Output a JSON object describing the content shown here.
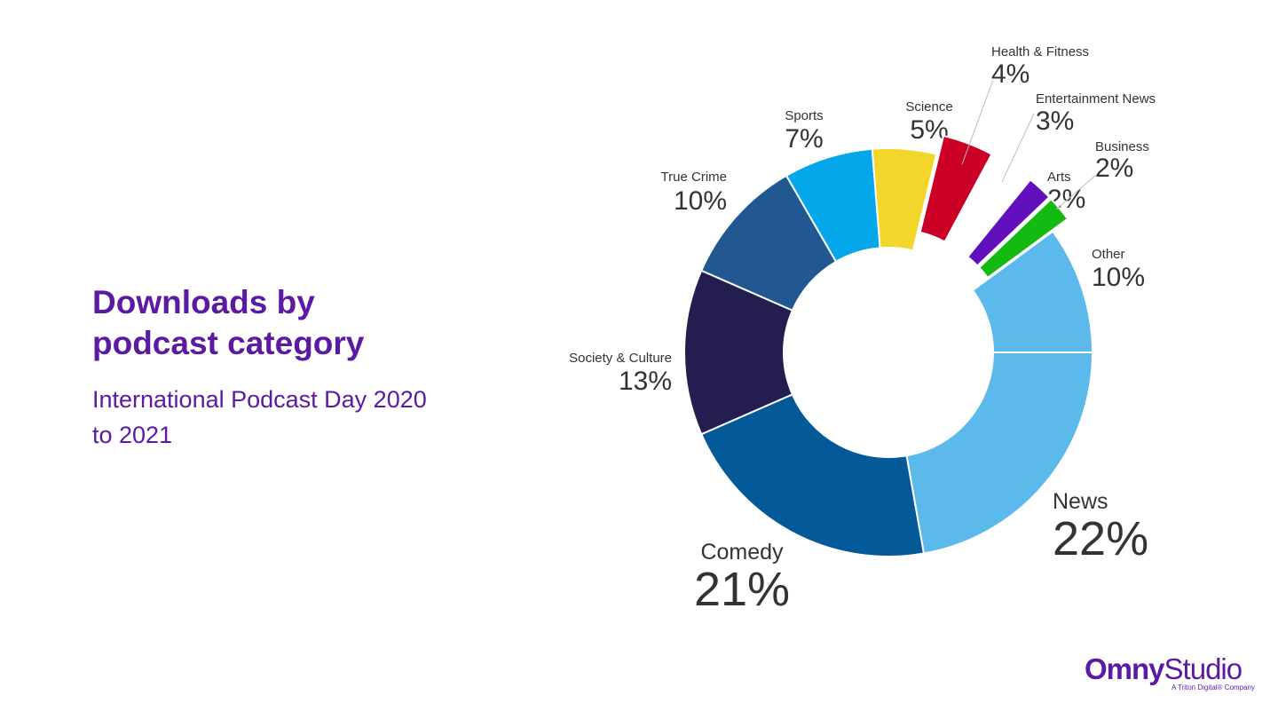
{
  "page": {
    "title": "Downloads by\npodcast category",
    "subtitle": "International Podcast Day 2020\nto 2021"
  },
  "logo": {
    "brand_bold": "Omny",
    "brand_light": "Studio",
    "tagline": "A Triton Digital® Company"
  },
  "chart_data": {
    "type": "pie",
    "style": "donut",
    "categories": [
      "News",
      "Comedy",
      "Society & Culture",
      "True Crime",
      "Sports",
      "Science",
      "Health & Fitness",
      "Entertainment News",
      "Arts",
      "Business",
      "Other"
    ],
    "values": [
      22,
      21,
      13,
      10,
      7,
      5,
      4,
      3,
      2,
      2,
      10
    ],
    "value_labels": [
      "22%",
      "21%",
      "13%",
      "10%",
      "7%",
      "5%",
      "4%",
      "3%",
      "2%",
      "2%",
      "10%"
    ],
    "colors": [
      "#5bb9eb",
      "#045a99",
      "#231e4f",
      "#225891",
      "#04a7e9",
      "#f2d72a",
      "#cc0027",
      "#ffffff",
      "#6210be",
      "#12ba12",
      "#5bb9eb"
    ],
    "exploded": [
      "Health & Fitness",
      "Entertainment News",
      "Arts",
      "Business"
    ],
    "legend": "none"
  }
}
